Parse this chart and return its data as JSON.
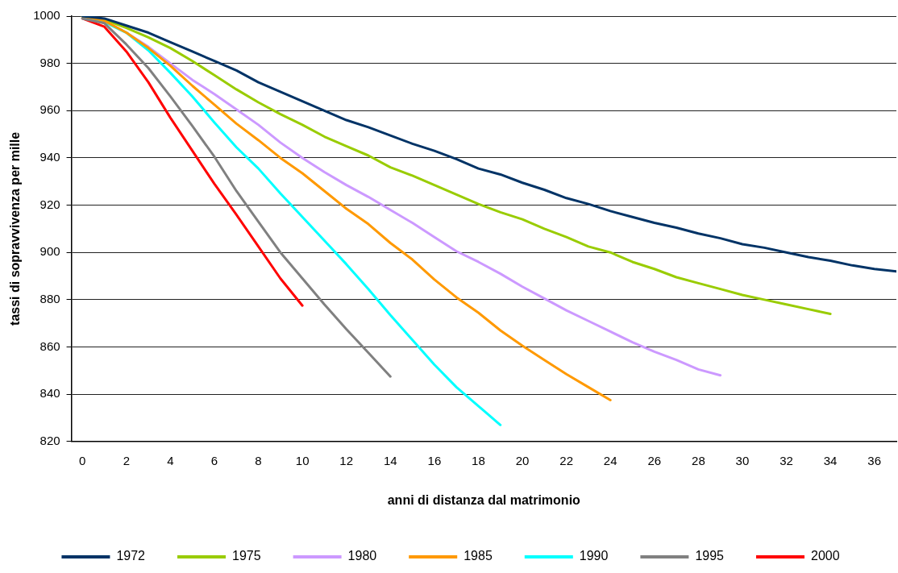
{
  "chart_data": {
    "type": "line",
    "xlabel": "anni di distanza dal matrimonio",
    "ylabel": "tassi di sopravvivenza per mille",
    "xlim": [
      -0.5,
      37
    ],
    "xticks": [
      0,
      2,
      4,
      6,
      8,
      10,
      12,
      14,
      16,
      18,
      20,
      22,
      24,
      26,
      28,
      30,
      32,
      34,
      36
    ],
    "ylim": [
      820,
      1000
    ],
    "yticks": [
      820,
      840,
      860,
      880,
      900,
      920,
      940,
      960,
      980,
      1000
    ],
    "grid": "y",
    "legend": "bottom",
    "marker": "none",
    "line_style": "solid",
    "x": [
      0,
      1,
      2,
      3,
      4,
      5,
      6,
      7,
      8,
      9,
      10,
      11,
      12,
      13,
      14,
      15,
      16,
      17,
      18,
      19,
      20,
      21,
      22,
      23,
      24,
      25,
      26,
      27,
      28,
      29,
      30,
      31,
      32,
      33,
      34,
      35,
      36,
      37
    ],
    "series": [
      {
        "name": "1972",
        "color": "#003366",
        "values": [
          1000,
          999,
          996,
          993,
          989,
          985,
          981,
          977,
          972,
          968,
          964,
          960,
          956,
          953,
          949.5,
          946,
          943,
          939.5,
          935.5,
          933,
          929.5,
          926.5,
          923,
          920.5,
          917.5,
          915,
          912.5,
          910.5,
          908,
          906,
          903.5,
          902,
          900,
          898,
          896.5,
          894.5,
          893,
          892
        ]
      },
      {
        "name": "1975",
        "color": "#99cc00",
        "values": [
          1000,
          998.5,
          995,
          991,
          986.5,
          981,
          975,
          969,
          963.5,
          958.5,
          954,
          949,
          945,
          941,
          936,
          932.5,
          928.5,
          924.5,
          920.5,
          917,
          914,
          910,
          906.5,
          902.5,
          900,
          896,
          893,
          889.5,
          887,
          884.5,
          882,
          880,
          878,
          876,
          874,
          null,
          null,
          null
        ]
      },
      {
        "name": "1980",
        "color": "#cc99ff",
        "values": [
          1000,
          998,
          993,
          987,
          980,
          973,
          967,
          960.5,
          954,
          946.5,
          940,
          934,
          928.5,
          923.5,
          918,
          912.5,
          906.5,
          900.5,
          896,
          891,
          885.5,
          880.5,
          875.5,
          871,
          866.5,
          862,
          858,
          854.5,
          850.5,
          848,
          null,
          null,
          null,
          null,
          null,
          null,
          null,
          null
        ]
      },
      {
        "name": "1985",
        "color": "#ff9900",
        "values": [
          1000,
          998,
          993,
          986.5,
          979,
          970.5,
          962.5,
          954.5,
          947.5,
          940,
          933.5,
          926,
          918.5,
          912,
          904,
          897,
          888.5,
          881,
          874.5,
          867,
          860.5,
          854.5,
          848.5,
          843,
          837.5,
          null,
          null,
          null,
          null,
          null,
          null,
          null,
          null,
          null,
          null,
          null,
          null,
          null
        ]
      },
      {
        "name": "1990",
        "color": "#00ffff",
        "values": [
          1000,
          997.5,
          993,
          985.5,
          976,
          966,
          955,
          944.5,
          935.5,
          925,
          915,
          905,
          895,
          884.5,
          873.5,
          863,
          852.5,
          843,
          835,
          827,
          null,
          null,
          null,
          null,
          null,
          null,
          null,
          null,
          null,
          null,
          null,
          null,
          null,
          null,
          null,
          null,
          null,
          null
        ]
      },
      {
        "name": "1995",
        "color": "#808080",
        "values": [
          999,
          997,
          988,
          978,
          966,
          953.5,
          940.5,
          926,
          913,
          900,
          889,
          878,
          867.5,
          857.5,
          847.5,
          null,
          null,
          null,
          null,
          null,
          null,
          null,
          null,
          null,
          null,
          null,
          null,
          null,
          null,
          null,
          null,
          null,
          null,
          null,
          null,
          null,
          null,
          null
        ]
      },
      {
        "name": "2000",
        "color": "#ff0000",
        "values": [
          999,
          995.5,
          985,
          972,
          957,
          943,
          929,
          916,
          902.5,
          889,
          877.5,
          null,
          null,
          null,
          null,
          null,
          null,
          null,
          null,
          null,
          null,
          null,
          null,
          null,
          null,
          null,
          null,
          null,
          null,
          null,
          null,
          null,
          null,
          null,
          null,
          null,
          null,
          null
        ]
      }
    ]
  }
}
